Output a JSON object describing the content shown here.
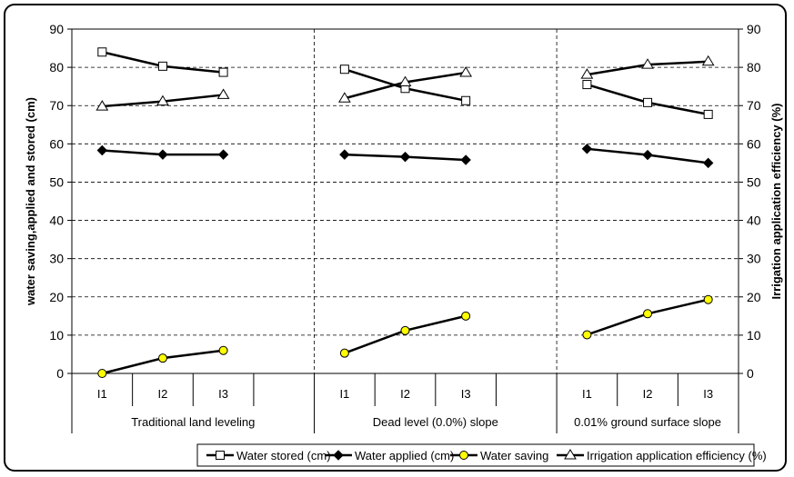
{
  "chart_data": {
    "type": "line",
    "ylabel_left": "water saving,applied and stored (cm)",
    "ylabel_right": "Irrigation application efficiency (%)",
    "ylim": [
      0,
      90
    ],
    "y_ticks": [
      "0",
      "10",
      "20",
      "30",
      "40",
      "50",
      "60",
      "70",
      "80",
      "90"
    ],
    "groups": [
      {
        "label": "Traditional land leveling",
        "categories": [
          "I1",
          "I2",
          "I3"
        ]
      },
      {
        "label": "Dead level (0.0%) slope",
        "categories": [
          "I1",
          "I2",
          "I3"
        ]
      },
      {
        "label": "0.01% ground surface slope",
        "categories": [
          "I1",
          "I2",
          "I3"
        ]
      }
    ],
    "series": [
      {
        "name": "Water stored (cm)",
        "marker": "square",
        "fill": "#ffffff",
        "values": [
          [
            84,
            80.3,
            78.7
          ],
          [
            79.5,
            74.5,
            71.3
          ],
          [
            75.5,
            70.8,
            67.7
          ]
        ]
      },
      {
        "name": "Water applied (cm)",
        "marker": "diamond",
        "fill": "#000000",
        "values": [
          [
            58.3,
            57.2,
            57.2
          ],
          [
            57.2,
            56.6,
            55.8
          ],
          [
            58.7,
            57.1,
            55.0
          ]
        ]
      },
      {
        "name": "Water saving",
        "marker": "circle",
        "fill": "#ffff00",
        "values": [
          [
            0,
            4,
            6
          ],
          [
            5.3,
            11.2,
            15
          ],
          [
            10.1,
            15.6,
            19.3
          ]
        ]
      },
      {
        "name": "Irrigation application efficiency (%)",
        "marker": "triangle",
        "fill": "#ffffff",
        "values": [
          [
            69.8,
            71.1,
            72.8
          ],
          [
            71.9,
            76.1,
            78.6
          ],
          [
            78.1,
            80.7,
            81.5
          ]
        ]
      }
    ]
  }
}
